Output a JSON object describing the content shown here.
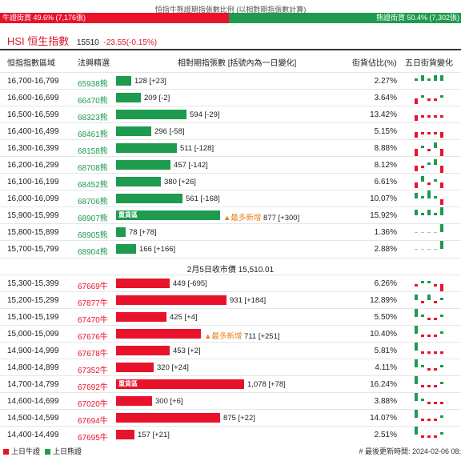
{
  "header": {
    "caption": "恒指牛熊證期指張數比例 (以相對期指張數計算)",
    "bull_text": "牛證街貨 49.6% (7,176張)",
    "bear_text": "熊證街貨 50.4% (7,302張)",
    "bull_pct": 49.6,
    "bear_pct": 50.4
  },
  "index": {
    "name": "HSI 恒生指數",
    "value": "15510",
    "change": "-23.55(-0.15%)"
  },
  "table_headers": {
    "range": "恒指指數區域",
    "code": "法興精選",
    "contracts": "相對期指張數 [括號內為一日變化]",
    "ratio": "街貨佔比(%)",
    "trend": "五日街貨變化"
  },
  "bear_rows": [
    {
      "range": "16,700-16,799",
      "code": "65938熊",
      "label": "128 [+23]",
      "value": 128,
      "pct": "2.27%",
      "spark": [
        1,
        2,
        1,
        2,
        2
      ]
    },
    {
      "range": "16,600-16,699",
      "code": "66470熊",
      "label": "209 [-2]",
      "value": 209,
      "pct": "3.64%",
      "spark": [
        -2,
        1,
        -1,
        -1,
        1
      ]
    },
    {
      "range": "16,500-16,599",
      "code": "68323熊",
      "label": "594 [-29]",
      "value": 594,
      "pct": "13.42%",
      "spark": [
        -2,
        -1,
        -1,
        -1,
        -1
      ]
    },
    {
      "range": "16,400-16,499",
      "code": "68461熊",
      "label": "296 [-58]",
      "value": 296,
      "pct": "5.15%",
      "spark": [
        -2,
        -1,
        -1,
        -1,
        -2
      ]
    },
    {
      "range": "16,300-16,399",
      "code": "68158熊",
      "label": "511 [-128]",
      "value": 511,
      "pct": "8.88%",
      "spark": [
        -3,
        1,
        -1,
        2,
        -3
      ]
    },
    {
      "range": "16,200-16,299",
      "code": "68708熊",
      "label": "457 [-142]",
      "value": 457,
      "pct": "8.12%",
      "spark": [
        -2,
        -1,
        1,
        2,
        -3
      ]
    },
    {
      "range": "16,100-16,199",
      "code": "68452熊",
      "label": "380 [+26]",
      "value": 380,
      "pct": "6.61%",
      "spark": [
        -2,
        2,
        -1,
        1,
        -2
      ]
    },
    {
      "range": "16,000-16,099",
      "code": "68706熊",
      "label": "561 [-168]",
      "value": 561,
      "pct": "10.07%",
      "spark": [
        2,
        1,
        3,
        1,
        -2
      ]
    },
    {
      "range": "15,900-15,999",
      "code": "68907熊",
      "label": "877 [+300]",
      "value": 877,
      "pct": "15.92%",
      "spark": [
        2,
        1,
        2,
        1,
        3
      ],
      "heavy": true,
      "most_new": true
    },
    {
      "range": "15,800-15,899",
      "code": "68905熊",
      "label": "78 [+78]",
      "value": 78,
      "pct": "1.36%",
      "spark": [
        0,
        0,
        0,
        0,
        3
      ]
    },
    {
      "range": "15,700-15,799",
      "code": "68904熊",
      "label": "166 [+166]",
      "value": 166,
      "pct": "2.88%",
      "spark": [
        0,
        0,
        0,
        0,
        3
      ]
    }
  ],
  "close_line": "2月5日收市價 15,510.01",
  "bull_rows": [
    {
      "range": "15,300-15,399",
      "code": "67669牛",
      "label": "449 [-695]",
      "value": 449,
      "pct": "6.26%",
      "spark": [
        -1,
        1,
        1,
        -1,
        -3
      ]
    },
    {
      "range": "15,200-15,299",
      "code": "67877牛",
      "label": "931 [+184]",
      "value": 931,
      "pct": "12.89%",
      "spark": [
        2,
        -1,
        2,
        -1,
        1
      ]
    },
    {
      "range": "15,100-15,199",
      "code": "67470牛",
      "label": "425 [+4]",
      "value": 425,
      "pct": "5.50%",
      "spark": [
        3,
        1,
        -1,
        -1,
        1
      ]
    },
    {
      "range": "15,000-15,099",
      "code": "67676牛",
      "label": "711 [+251]",
      "value": 711,
      "pct": "10.40%",
      "spark": [
        3,
        -1,
        -1,
        -1,
        1
      ],
      "most_new": true
    },
    {
      "range": "14,900-14,999",
      "code": "67678牛",
      "label": "453 [+2]",
      "value": 453,
      "pct": "5.81%",
      "spark": [
        3,
        -1,
        -1,
        -1,
        -1
      ]
    },
    {
      "range": "14,800-14,899",
      "code": "67352牛",
      "label": "320 [+24]",
      "value": 320,
      "pct": "4.11%",
      "spark": [
        3,
        1,
        -1,
        -1,
        1
      ]
    },
    {
      "range": "14,700-14,799",
      "code": "67692牛",
      "label": "1,078 [+78]",
      "value": 1078,
      "pct": "16.24%",
      "spark": [
        3,
        -1,
        -1,
        -1,
        1
      ],
      "heavy": true
    },
    {
      "range": "14,600-14,699",
      "code": "67020牛",
      "label": "300 [+6]",
      "value": 300,
      "pct": "3.88%",
      "spark": [
        3,
        1,
        -1,
        -1,
        -1
      ]
    },
    {
      "range": "14,500-14,599",
      "code": "67694牛",
      "label": "875 [+22]",
      "value": 875,
      "pct": "14.07%",
      "spark": [
        3,
        -1,
        -1,
        -1,
        1
      ]
    },
    {
      "range": "14,400-14,499",
      "code": "67695牛",
      "label": "157 [+21]",
      "value": 157,
      "pct": "2.51%",
      "spark": [
        3,
        -1,
        -1,
        -1,
        1
      ]
    }
  ],
  "heavy_label": "重貨區",
  "most_new_label": "▲最多新增",
  "legend": {
    "bull": "上日牛證",
    "bear": "上日熊證"
  },
  "updated": "# 最後更新時間: 2024-02-06 08:",
  "colors": {
    "bull": "#e8132b",
    "bear": "#1e9b4e",
    "accent": "#e8801a"
  }
}
